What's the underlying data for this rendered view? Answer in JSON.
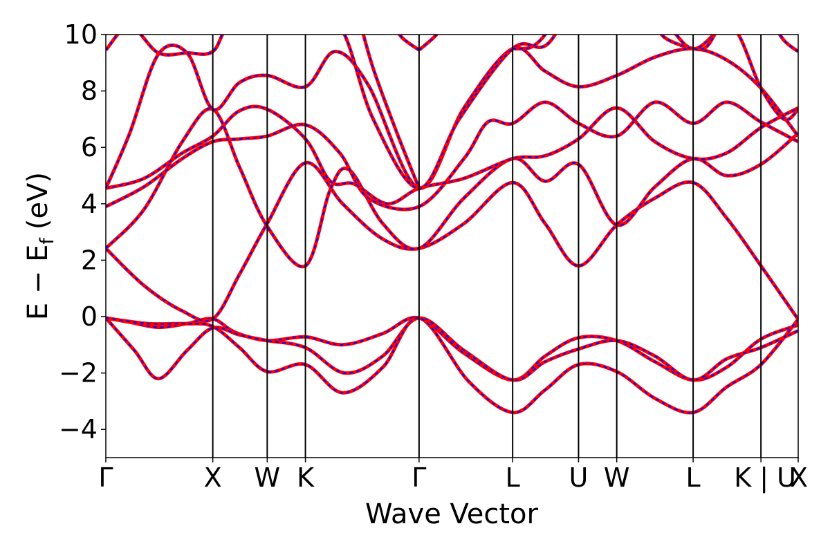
{
  "chart_data": {
    "type": "line",
    "title": "",
    "xlabel": "Wave Vector",
    "ylabel": {
      "main": "E − E",
      "subscript": "f",
      "unit": "(eV)"
    },
    "ylim": [
      -5,
      10
    ],
    "xlim": [
      0,
      7.25
    ],
    "y_ticks": [
      {
        "value": -4,
        "label": "−4"
      },
      {
        "value": -2,
        "label": "−2"
      },
      {
        "value": 0,
        "label": "0"
      },
      {
        "value": 2,
        "label": "2"
      },
      {
        "value": 4,
        "label": "4"
      },
      {
        "value": 6,
        "label": "6"
      },
      {
        "value": 8,
        "label": "8"
      },
      {
        "value": 10,
        "label": "10"
      }
    ],
    "k_points": [
      {
        "x": 0.0,
        "label": "Γ"
      },
      {
        "x": 1.12,
        "label": "X"
      },
      {
        "x": 1.69,
        "label": "W"
      },
      {
        "x": 2.09,
        "label": "K"
      },
      {
        "x": 3.28,
        "label": "Γ"
      },
      {
        "x": 4.26,
        "label": "L"
      },
      {
        "x": 4.95,
        "label": "U"
      },
      {
        "x": 5.35,
        "label": "W"
      },
      {
        "x": 6.15,
        "label": "L"
      },
      {
        "x": 6.86,
        "label": "K | U"
      },
      {
        "x": 7.25,
        "label": "X"
      }
    ],
    "grid": false,
    "legend": "none",
    "line_colors": {
      "solid": "#ff0000",
      "dashed": "#0000ff"
    },
    "bands": [
      [
        [
          0,
          -0.05
        ],
        [
          0.25,
          -0.2
        ],
        [
          0.55,
          -0.38
        ],
        [
          0.85,
          -0.25
        ],
        [
          1.12,
          -0.08
        ],
        [
          1.35,
          -0.55
        ],
        [
          1.69,
          -0.85
        ],
        [
          2.09,
          -0.72
        ],
        [
          2.48,
          -1.0
        ],
        [
          2.9,
          -0.6
        ],
        [
          3.28,
          -0.05
        ],
        [
          3.75,
          -1.3
        ],
        [
          4.26,
          -2.25
        ],
        [
          4.6,
          -1.4
        ],
        [
          4.95,
          -0.75
        ],
        [
          5.35,
          -0.85
        ],
        [
          5.75,
          -1.6
        ],
        [
          6.15,
          -2.25
        ],
        [
          6.5,
          -1.8
        ],
        [
          6.86,
          -0.8
        ],
        [
          7.25,
          -0.3
        ]
      ],
      [
        [
          0,
          -0.05
        ],
        [
          0.3,
          -1.2
        ],
        [
          0.55,
          -2.2
        ],
        [
          0.85,
          -1.2
        ],
        [
          1.12,
          -0.4
        ],
        [
          1.4,
          -0.65
        ],
        [
          1.69,
          -0.85
        ],
        [
          2.09,
          -1.1
        ],
        [
          2.5,
          -2.0
        ],
        [
          2.9,
          -1.4
        ],
        [
          3.28,
          -0.05
        ],
        [
          3.75,
          -1.2
        ],
        [
          4.26,
          -2.25
        ],
        [
          4.6,
          -1.6
        ],
        [
          4.95,
          -1.15
        ],
        [
          5.35,
          -0.85
        ],
        [
          5.75,
          -1.4
        ],
        [
          6.15,
          -2.25
        ],
        [
          6.5,
          -1.5
        ],
        [
          6.86,
          -1.1
        ],
        [
          7.25,
          -0.5
        ]
      ],
      [
        [
          0,
          -0.05
        ],
        [
          0.45,
          -0.25
        ],
        [
          0.85,
          -0.25
        ],
        [
          1.12,
          -0.35
        ],
        [
          1.4,
          -1.1
        ],
        [
          1.69,
          -1.95
        ],
        [
          2.09,
          -1.7
        ],
        [
          2.48,
          -2.7
        ],
        [
          2.9,
          -1.8
        ],
        [
          3.28,
          -0.05
        ],
        [
          3.8,
          -2.3
        ],
        [
          4.26,
          -3.4
        ],
        [
          4.6,
          -2.6
        ],
        [
          4.95,
          -1.7
        ],
        [
          5.35,
          -1.95
        ],
        [
          5.75,
          -2.9
        ],
        [
          6.15,
          -3.4
        ],
        [
          6.5,
          -2.5
        ],
        [
          6.86,
          -1.7
        ],
        [
          7.25,
          -0.1
        ]
      ],
      [
        [
          0,
          2.42
        ],
        [
          0.4,
          1.1
        ],
        [
          0.8,
          0.2
        ],
        [
          1.12,
          -0.08
        ],
        [
          1.4,
          1.5
        ],
        [
          1.69,
          3.3
        ],
        [
          2.09,
          5.45
        ],
        [
          2.48,
          4.0
        ],
        [
          2.9,
          2.75
        ],
        [
          3.28,
          2.42
        ],
        [
          3.75,
          3.3
        ],
        [
          4.26,
          4.75
        ],
        [
          4.6,
          3.3
        ],
        [
          4.95,
          1.8
        ],
        [
          5.35,
          3.25
        ],
        [
          5.75,
          4.2
        ],
        [
          6.15,
          4.75
        ],
        [
          6.5,
          3.5
        ],
        [
          6.86,
          1.8
        ],
        [
          7.25,
          -0.1
        ]
      ],
      [
        [
          0,
          2.42
        ],
        [
          0.4,
          3.8
        ],
        [
          0.8,
          6.2
        ],
        [
          1.12,
          7.35
        ],
        [
          1.4,
          5.3
        ],
        [
          1.69,
          3.2
        ],
        [
          2.09,
          1.8
        ],
        [
          2.35,
          4.5
        ],
        [
          2.55,
          5.2
        ],
        [
          2.9,
          3.3
        ],
        [
          3.28,
          2.42
        ],
        [
          3.75,
          4.2
        ],
        [
          4.26,
          5.6
        ],
        [
          4.6,
          4.8
        ],
        [
          4.95,
          5.4
        ],
        [
          5.35,
          3.25
        ],
        [
          5.75,
          4.6
        ],
        [
          6.15,
          5.6
        ],
        [
          6.5,
          5.0
        ],
        [
          6.86,
          5.4
        ],
        [
          7.25,
          6.5
        ]
      ],
      [
        [
          0,
          3.9
        ],
        [
          0.4,
          4.6
        ],
        [
          0.8,
          5.6
        ],
        [
          1.12,
          6.2
        ],
        [
          1.4,
          6.3
        ],
        [
          1.69,
          6.4
        ],
        [
          2.09,
          6.8
        ],
        [
          2.45,
          5.8
        ],
        [
          2.75,
          4.2
        ],
        [
          3.28,
          3.9
        ],
        [
          3.75,
          5.6
        ],
        [
          4.0,
          6.9
        ],
        [
          4.26,
          6.85
        ],
        [
          4.6,
          7.6
        ],
        [
          4.95,
          6.85
        ],
        [
          5.35,
          6.4
        ],
        [
          5.75,
          7.6
        ],
        [
          6.15,
          6.85
        ],
        [
          6.5,
          7.6
        ],
        [
          6.86,
          6.9
        ],
        [
          7.25,
          6.2
        ]
      ],
      [
        [
          0,
          4.55
        ],
        [
          0.4,
          4.9
        ],
        [
          0.8,
          5.8
        ],
        [
          1.12,
          6.4
        ],
        [
          1.4,
          7.3
        ],
        [
          1.69,
          7.35
        ],
        [
          2.09,
          6.3
        ],
        [
          2.35,
          4.8
        ],
        [
          2.6,
          4.7
        ],
        [
          2.95,
          4.0
        ],
        [
          3.28,
          4.55
        ],
        [
          3.75,
          4.9
        ],
        [
          4.26,
          5.6
        ],
        [
          4.6,
          5.7
        ],
        [
          4.95,
          6.3
        ],
        [
          5.35,
          7.4
        ],
        [
          5.75,
          6.2
        ],
        [
          6.15,
          5.6
        ],
        [
          6.5,
          5.8
        ],
        [
          6.86,
          6.7
        ],
        [
          7.25,
          7.4
        ]
      ],
      [
        [
          0,
          4.55
        ],
        [
          0.25,
          6.5
        ],
        [
          0.55,
          9.3
        ],
        [
          0.85,
          9.35
        ],
        [
          1.12,
          7.35
        ],
        [
          1.4,
          8.3
        ],
        [
          1.69,
          8.55
        ],
        [
          2.09,
          8.15
        ],
        [
          2.4,
          9.4
        ],
        [
          2.75,
          8.2
        ],
        [
          3.28,
          4.55
        ],
        [
          3.75,
          7.4
        ],
        [
          4.26,
          9.5
        ],
        [
          4.6,
          8.7
        ],
        [
          4.95,
          8.15
        ],
        [
          5.35,
          8.55
        ],
        [
          5.75,
          9.2
        ],
        [
          6.15,
          9.5
        ],
        [
          6.5,
          9.1
        ],
        [
          6.86,
          8.1
        ],
        [
          7.25,
          6.4
        ]
      ],
      [
        [
          0,
          9.45
        ],
        [
          0.25,
          10.3
        ],
        [
          0.55,
          9.35
        ],
        [
          0.85,
          9.35
        ],
        [
          1.12,
          9.4
        ],
        [
          1.35,
          10.5
        ],
        [
          2.0,
          10.8
        ],
        [
          2.45,
          10.3
        ],
        [
          2.8,
          7.0
        ],
        [
          3.28,
          4.55
        ],
        [
          3.7,
          7.0
        ],
        [
          4.26,
          9.5
        ],
        [
          4.6,
          9.6
        ],
        [
          4.95,
          10.8
        ],
        [
          5.75,
          10.6
        ],
        [
          6.15,
          9.5
        ],
        [
          6.55,
          10.3
        ],
        [
          6.86,
          8.1
        ],
        [
          7.1,
          7.0
        ],
        [
          7.25,
          7.35
        ]
      ],
      [
        [
          2.65,
          10.6
        ],
        [
          2.8,
          8.8
        ],
        [
          3.05,
          6.5
        ],
        [
          3.28,
          4.55
        ]
      ],
      [
        [
          3.28,
          9.45
        ],
        [
          3.1,
          9.9
        ],
        [
          2.98,
          10.5
        ]
      ],
      [
        [
          3.28,
          9.45
        ],
        [
          3.45,
          9.95
        ],
        [
          3.58,
          10.5
        ]
      ],
      [
        [
          4.26,
          9.5
        ],
        [
          4.45,
          9.55
        ],
        [
          4.6,
          10.0
        ],
        [
          4.68,
          10.6
        ]
      ],
      [
        [
          5.72,
          10.6
        ],
        [
          5.85,
          9.9
        ],
        [
          6.15,
          9.5
        ],
        [
          6.3,
          9.6
        ],
        [
          6.45,
          10.5
        ]
      ],
      [
        [
          6.95,
          10.6
        ],
        [
          7.1,
          9.8
        ],
        [
          7.25,
          9.4
        ]
      ]
    ]
  }
}
